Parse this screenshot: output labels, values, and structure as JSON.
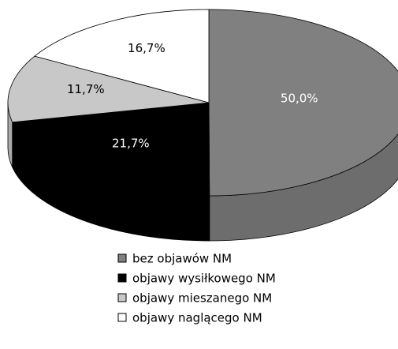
{
  "chart_data": {
    "type": "pie3d",
    "categories": [
      "bez objawów NM",
      "objawy wysiłkowego NM",
      "objawy mieszanego NM",
      "objawy naglącego NM"
    ],
    "values": [
      50.0,
      21.7,
      11.7,
      16.7
    ],
    "value_labels": [
      "50,0%",
      "21,7%",
      "11,7%",
      "16,7%"
    ],
    "colors": [
      "#808080",
      "#000000",
      "#c8c8c8",
      "#ffffff"
    ],
    "label_colors": [
      "#ffffff",
      "#ffffff",
      "#000000",
      "#000000"
    ],
    "legend": "bottom"
  }
}
